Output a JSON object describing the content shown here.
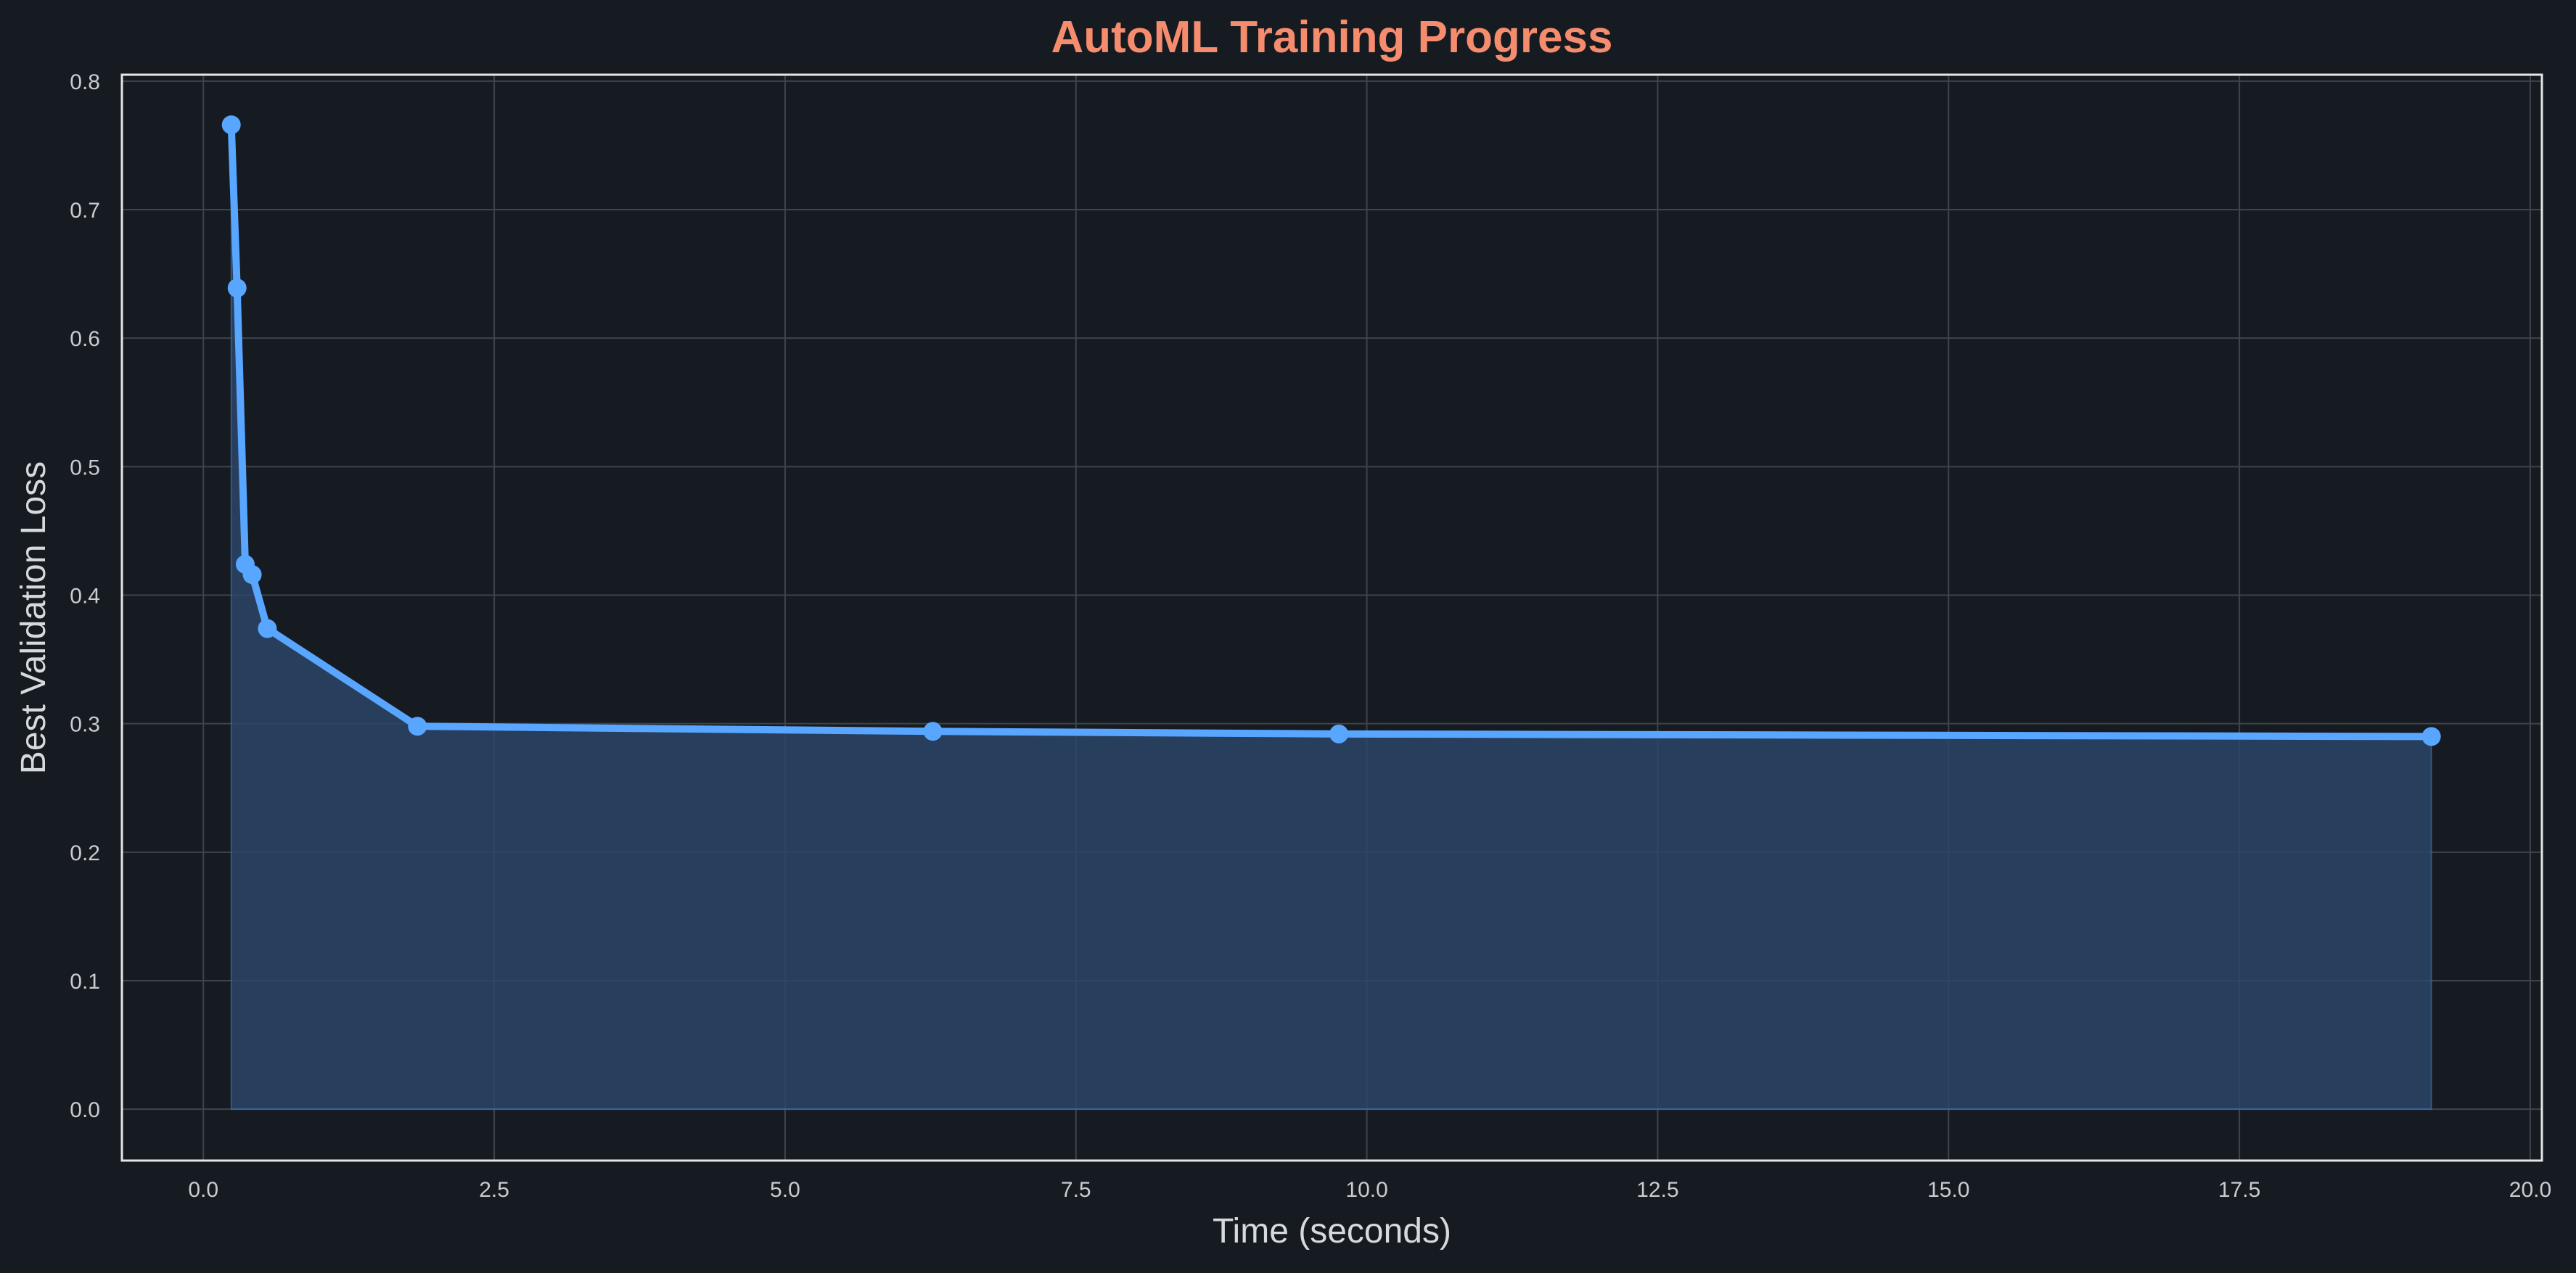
{
  "chart_data": {
    "type": "line",
    "title": "AutoML Training Progress",
    "xlabel": "Time (seconds)",
    "ylabel": "Best Validation Loss",
    "xlim": [
      -0.7,
      20.1
    ],
    "ylim": [
      -0.04,
      0.805
    ],
    "x_ticks": [
      "0.0",
      "2.5",
      "5.0",
      "7.5",
      "10.0",
      "12.5",
      "15.0",
      "17.5",
      "20.0"
    ],
    "y_ticks": [
      "0.0",
      "0.1",
      "0.2",
      "0.3",
      "0.4",
      "0.5",
      "0.6",
      "0.7",
      "0.8"
    ],
    "grid": true,
    "area_fill": true,
    "series": [
      {
        "x": [
          0.24,
          0.29,
          0.36,
          0.42,
          0.55,
          1.84,
          6.27,
          9.76,
          19.15
        ],
        "y": [
          0.766,
          0.639,
          0.424,
          0.416,
          0.374,
          0.298,
          0.294,
          0.292,
          0.29
        ]
      }
    ],
    "colors": {
      "background": "#161a21",
      "line": "#58a6ff",
      "fill": "#2b4567",
      "title": "#f58c6e",
      "grid": "#3f444c",
      "frame": "#e6e6e6"
    }
  }
}
